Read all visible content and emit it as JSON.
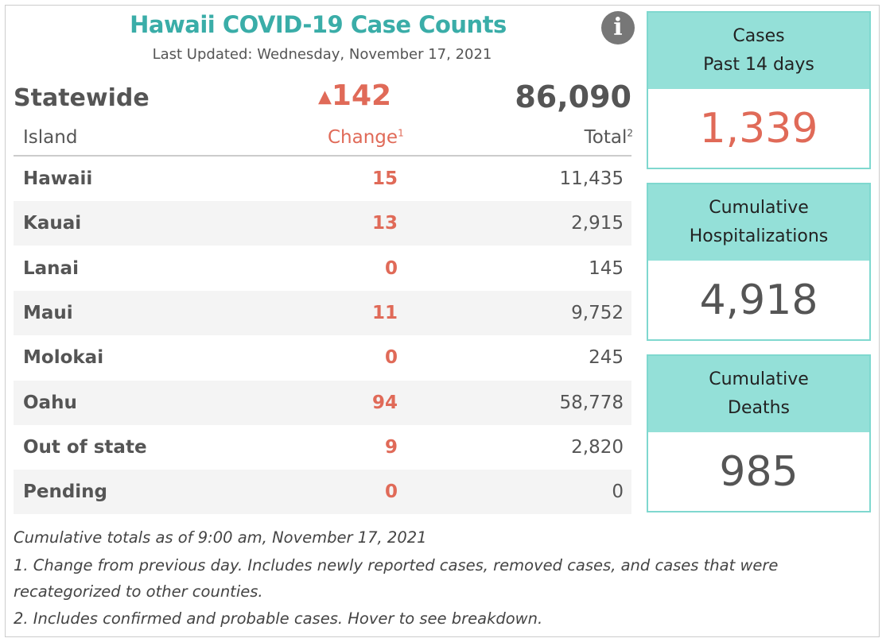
{
  "title": "Hawaii COVID-19 Case Counts",
  "last_updated": "Last Updated: Wednesday, November 17, 2021",
  "statewide": {
    "label": "Statewide",
    "arrow": "▲",
    "change": "142",
    "total": "86,090"
  },
  "headers": {
    "island": "Island",
    "change": "Change",
    "change_sup": "1",
    "total": "Total",
    "total_sup": "2"
  },
  "rows": [
    {
      "island": "Hawaii",
      "change": "15",
      "total": "11,435"
    },
    {
      "island": "Kauai",
      "change": "13",
      "total": "2,915"
    },
    {
      "island": "Lanai",
      "change": "0",
      "total": "145"
    },
    {
      "island": "Maui",
      "change": "11",
      "total": "9,752"
    },
    {
      "island": "Molokai",
      "change": "0",
      "total": "245"
    },
    {
      "island": "Oahu",
      "change": "94",
      "total": "58,778"
    },
    {
      "island": "Out of state",
      "change": "9",
      "total": "2,820"
    },
    {
      "island": "Pending",
      "change": "0",
      "total": "0"
    }
  ],
  "footnotes": [
    "Cumulative totals as of 9:00 am, November 17, 2021",
    "1. Change from previous day. Includes newly reported cases, removed cases, and cases that were",
    "recategorized to other counties.",
    "2. Includes confirmed and probable cases. Hover to see breakdown."
  ],
  "cards": [
    {
      "line1": "Cases",
      "line2": "Past 14 days",
      "value": "1,339",
      "color": "#e06a58"
    },
    {
      "line1": "Cumulative",
      "line2": "Hospitalizations",
      "value": "4,918",
      "color": "#555555"
    },
    {
      "line1": "Cumulative",
      "line2": "Deaths",
      "value": "985",
      "color": "#555555"
    }
  ],
  "info_icon": "i"
}
